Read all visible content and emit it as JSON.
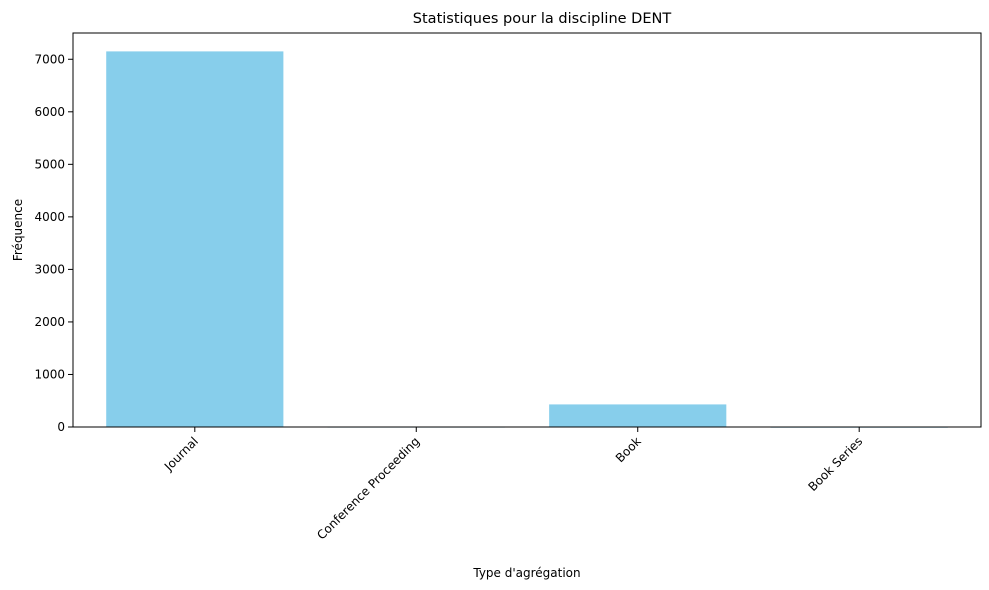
{
  "chart_data": {
    "type": "bar",
    "title": "Statistiques pour la discipline DENT",
    "xlabel": "Type d'agrégation",
    "ylabel": "Fréquence",
    "categories": [
      "Journal",
      "Conference Proceeding",
      "Book",
      "Book Series"
    ],
    "values": [
      7150,
      8,
      430,
      6
    ],
    "ylim": [
      0,
      7500
    ],
    "yticks": [
      0,
      1000,
      2000,
      3000,
      4000,
      5000,
      6000,
      7000
    ],
    "grid": false,
    "legend": "none",
    "bar_color": "#87ceeb",
    "xtick_rotation_deg": 45
  }
}
